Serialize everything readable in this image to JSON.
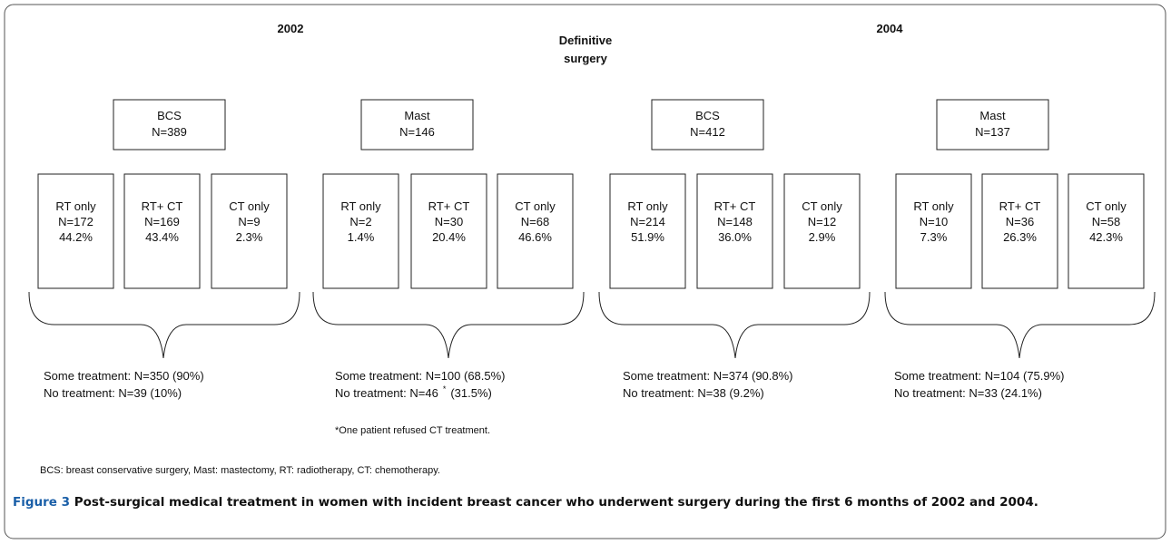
{
  "header": {
    "left_year": "2002",
    "center_line1": "Definitive",
    "center_line2": "surgery",
    "right_year": "2004"
  },
  "groups": [
    {
      "surgery": "BCS",
      "n": "N=389",
      "treatments": [
        [
          "RT only",
          "N=172",
          "44.2%"
        ],
        [
          "RT+ CT",
          "N=169",
          "43.4%"
        ],
        [
          "CT only",
          "N=9",
          "2.3%"
        ]
      ],
      "some_treatment": "Some treatment:  N=350 (90%)",
      "no_treatment": "No treatment:  N=39 (10%)"
    },
    {
      "surgery": "Mast",
      "n": "N=146",
      "treatments": [
        [
          "RT only",
          "N=2",
          "1.4%"
        ],
        [
          "RT+ CT",
          "N=30",
          "20.4%"
        ],
        [
          "CT only",
          "N=68",
          "46.6%"
        ]
      ],
      "some_treatment": "Some treatment:  N=100 (68.5%)",
      "no_treatment": "No treatment:  N=46",
      "no_treatment_mark": "*",
      "no_treatment_rest": "(31.5%)",
      "footnote": "*One patient refused CT treatment."
    },
    {
      "surgery": "BCS",
      "n": "N=412",
      "treatments": [
        [
          "RT only",
          "N=214",
          "51.9%"
        ],
        [
          "RT+ CT",
          "N=148",
          "36.0%"
        ],
        [
          "CT only",
          "N=12",
          "2.9%"
        ]
      ],
      "some_treatment": "Some treatment:  N=374 (90.8%)",
      "no_treatment": "No treatment:  N=38 (9.2%)"
    },
    {
      "surgery": "Mast",
      "n": "N=137",
      "treatments": [
        [
          "RT only",
          "N=10",
          "7.3%"
        ],
        [
          "RT+ CT",
          "N=36",
          "26.3%"
        ],
        [
          "CT only",
          "N=58",
          "42.3%"
        ]
      ],
      "some_treatment": "Some treatment:  N=104 (75.9%)",
      "no_treatment": "No treatment:  N=33 (24.1%)"
    }
  ],
  "abbreviations": "BCS: breast conservative surgery, Mast: mastectomy, RT: radiotherapy, CT: chemotherapy.",
  "caption": {
    "label": "Figure 3",
    "text": "Post-surgical medical treatment in women with incident breast cancer who underwent surgery during the first 6 months of 2002 and 2004."
  }
}
